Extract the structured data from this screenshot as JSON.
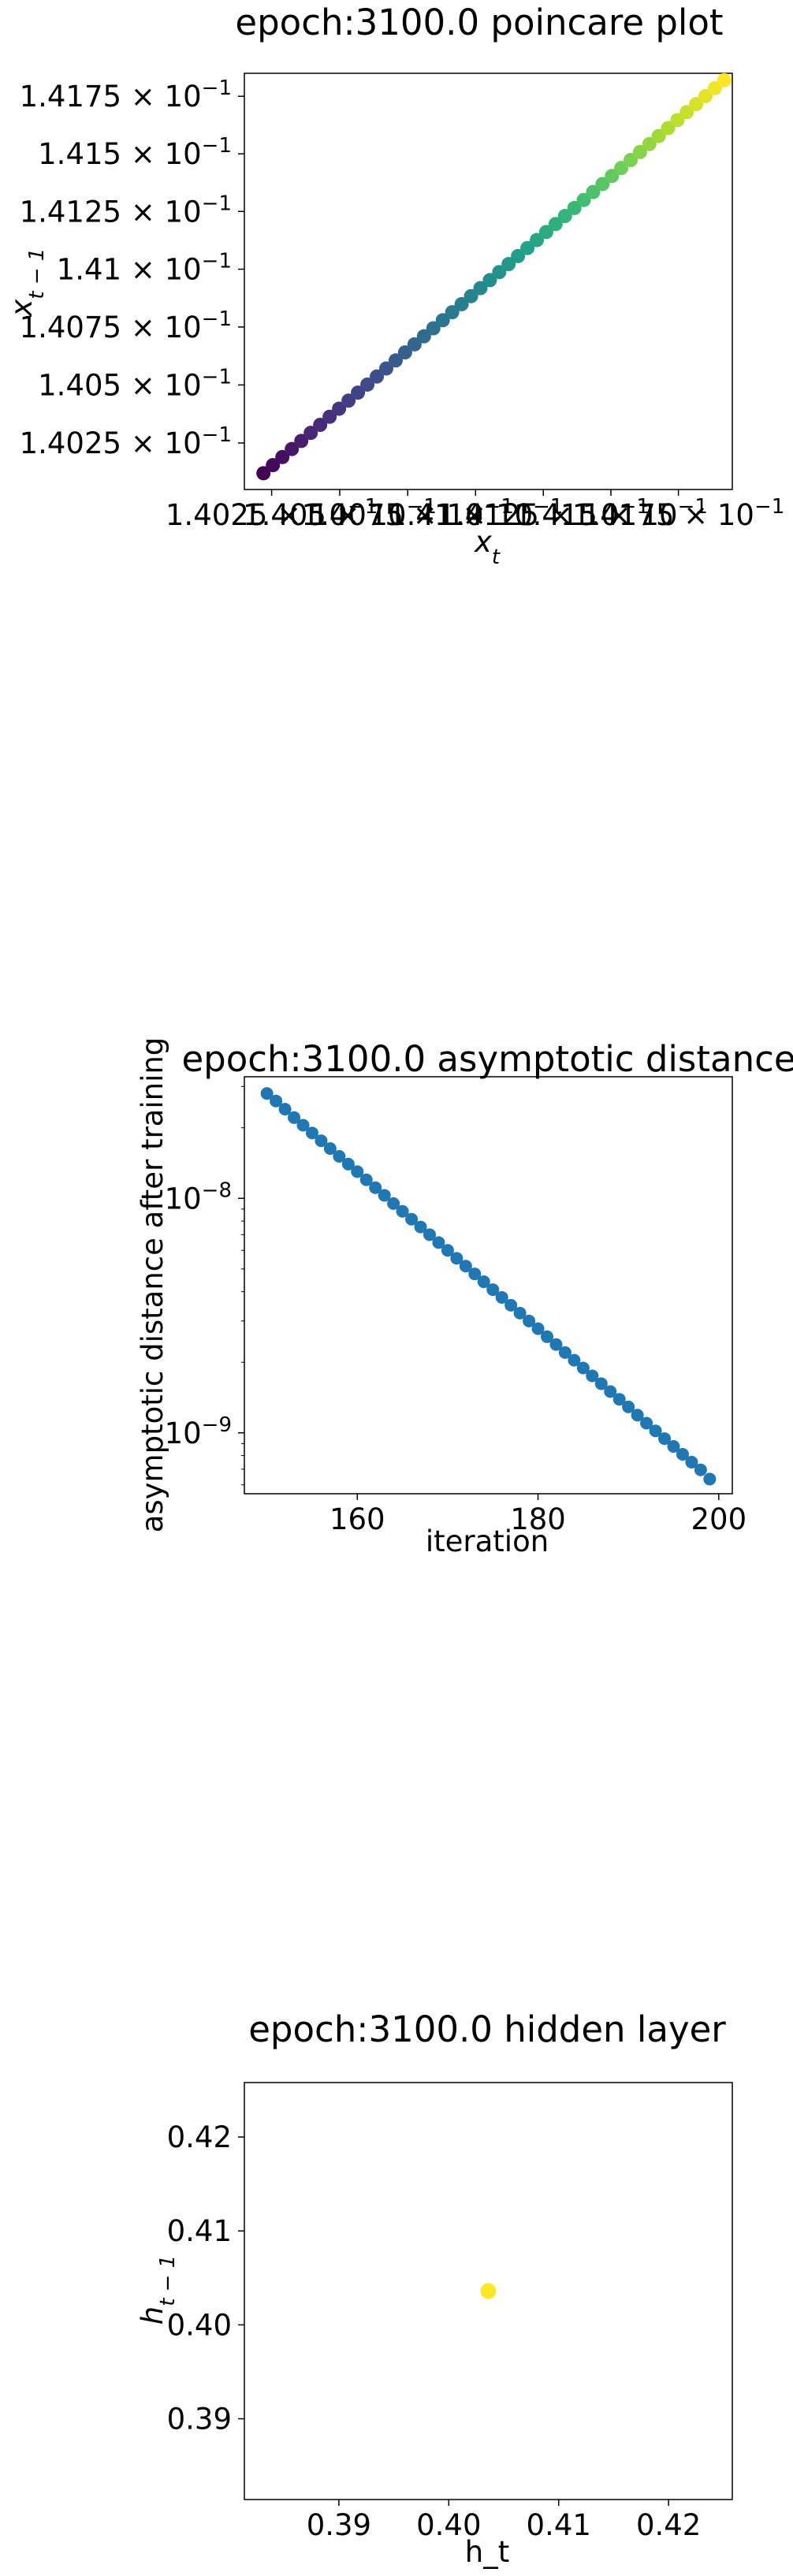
{
  "chart_data": [
    {
      "type": "scatter",
      "title": "epoch:3100.0 poincare plot",
      "xlabel": "x_t",
      "ylabel": "x_{t-1}",
      "x_tick_labels": [
        {
          "value": 0.14025,
          "label": "1.4025 × 10^-1"
        },
        {
          "value": 0.1405,
          "label": "1.405 × 10^-1"
        },
        {
          "value": 0.14075,
          "label": "1.4075 × 10^-1"
        },
        {
          "value": 0.141,
          "label": "1.41 × 10^-1"
        },
        {
          "value": 0.14125,
          "label": "1.4125 × 10^-1"
        },
        {
          "value": 0.1415,
          "label": "1.415 × 10^-1"
        },
        {
          "value": 0.14175,
          "label": "1.4175 × 10^-1"
        }
      ],
      "y_tick_labels": [
        {
          "value": 0.14025,
          "label": "1.4025 × 10^-1"
        },
        {
          "value": 0.1405,
          "label": "1.405 × 10^-1"
        },
        {
          "value": 0.14075,
          "label": "1.4075 × 10^-1"
        },
        {
          "value": 0.141,
          "label": "1.41 × 10^-1"
        },
        {
          "value": 0.14125,
          "label": "1.4125 × 10^-1"
        },
        {
          "value": 0.1415,
          "label": "1.415 × 10^-1"
        },
        {
          "value": 0.14175,
          "label": "1.4175 × 10^-1"
        }
      ],
      "xscale": "log",
      "yscale": "log",
      "xlim": [
        0.14015,
        0.14195
      ],
      "ylim": [
        0.14005,
        0.14185
      ],
      "colormap": "viridis",
      "n_points": 50,
      "x_start": 0.14022,
      "x_end": 0.14192,
      "y_start": 0.14012,
      "y_end": 0.14182
    },
    {
      "type": "scatter",
      "title": "epoch:3100.0 asymptotic distance",
      "xlabel": "iteration",
      "ylabel": "asymptotic distance after training",
      "yscale": "log",
      "xlim": [
        147.5,
        201.5
      ],
      "ylim": [
        5.5e-10,
        3.3e-08
      ],
      "xticks": [
        160,
        180,
        200
      ],
      "yticks": [
        {
          "value": 1e-08,
          "label": "10^-8"
        },
        {
          "value": 1e-09,
          "label": "10^-9"
        }
      ],
      "x": [
        150,
        151,
        152,
        153,
        154,
        155,
        156,
        157,
        158,
        159,
        160,
        161,
        162,
        163,
        164,
        165,
        166,
        167,
        168,
        169,
        170,
        171,
        172,
        173,
        174,
        175,
        176,
        177,
        178,
        179,
        180,
        181,
        182,
        183,
        184,
        185,
        186,
        187,
        188,
        189,
        190,
        191,
        192,
        193,
        194,
        195,
        196,
        197,
        198,
        199
      ],
      "y": [
        2.8e-08,
        2.6e-08,
        2.4e-08,
        2.21e-08,
        2.05e-08,
        1.9e-08,
        1.76e-08,
        1.63e-08,
        1.51e-08,
        1.4e-08,
        1.3e-08,
        1.2e-08,
        1.11e-08,
        1.03e-08,
        9.5e-09,
        8.8e-09,
        8.15e-09,
        7.55e-09,
        7e-09,
        6.48e-09,
        6e-09,
        5.55e-09,
        5.14e-09,
        4.76e-09,
        4.41e-09,
        4.08e-09,
        3.78e-09,
        3.5e-09,
        3.24e-09,
        3e-09,
        2.78e-09,
        2.57e-09,
        2.38e-09,
        2.2e-09,
        2.04e-09,
        1.89e-09,
        1.75e-09,
        1.62e-09,
        1.5e-09,
        1.39e-09,
        1.29e-09,
        1.19e-09,
        1.1e-09,
        1.02e-09,
        9.45e-10,
        8.75e-10,
        8.1e-10,
        7.5e-10,
        6.95e-10,
        6.35e-10
      ],
      "color": "#1f77b4"
    },
    {
      "type": "scatter",
      "title": "epoch:3100.0 hidden layer",
      "xlabel": "h_t",
      "ylabel": "h_{t-1}",
      "xlim": [
        0.3814,
        0.4258
      ],
      "ylim": [
        0.3814,
        0.4258
      ],
      "xticks": [
        0.39,
        0.4,
        0.41,
        0.42
      ],
      "yticks": [
        0.39,
        0.4,
        0.41,
        0.42
      ],
      "x": [
        0.4036
      ],
      "y": [
        0.4036
      ],
      "color": "#fde725"
    }
  ]
}
